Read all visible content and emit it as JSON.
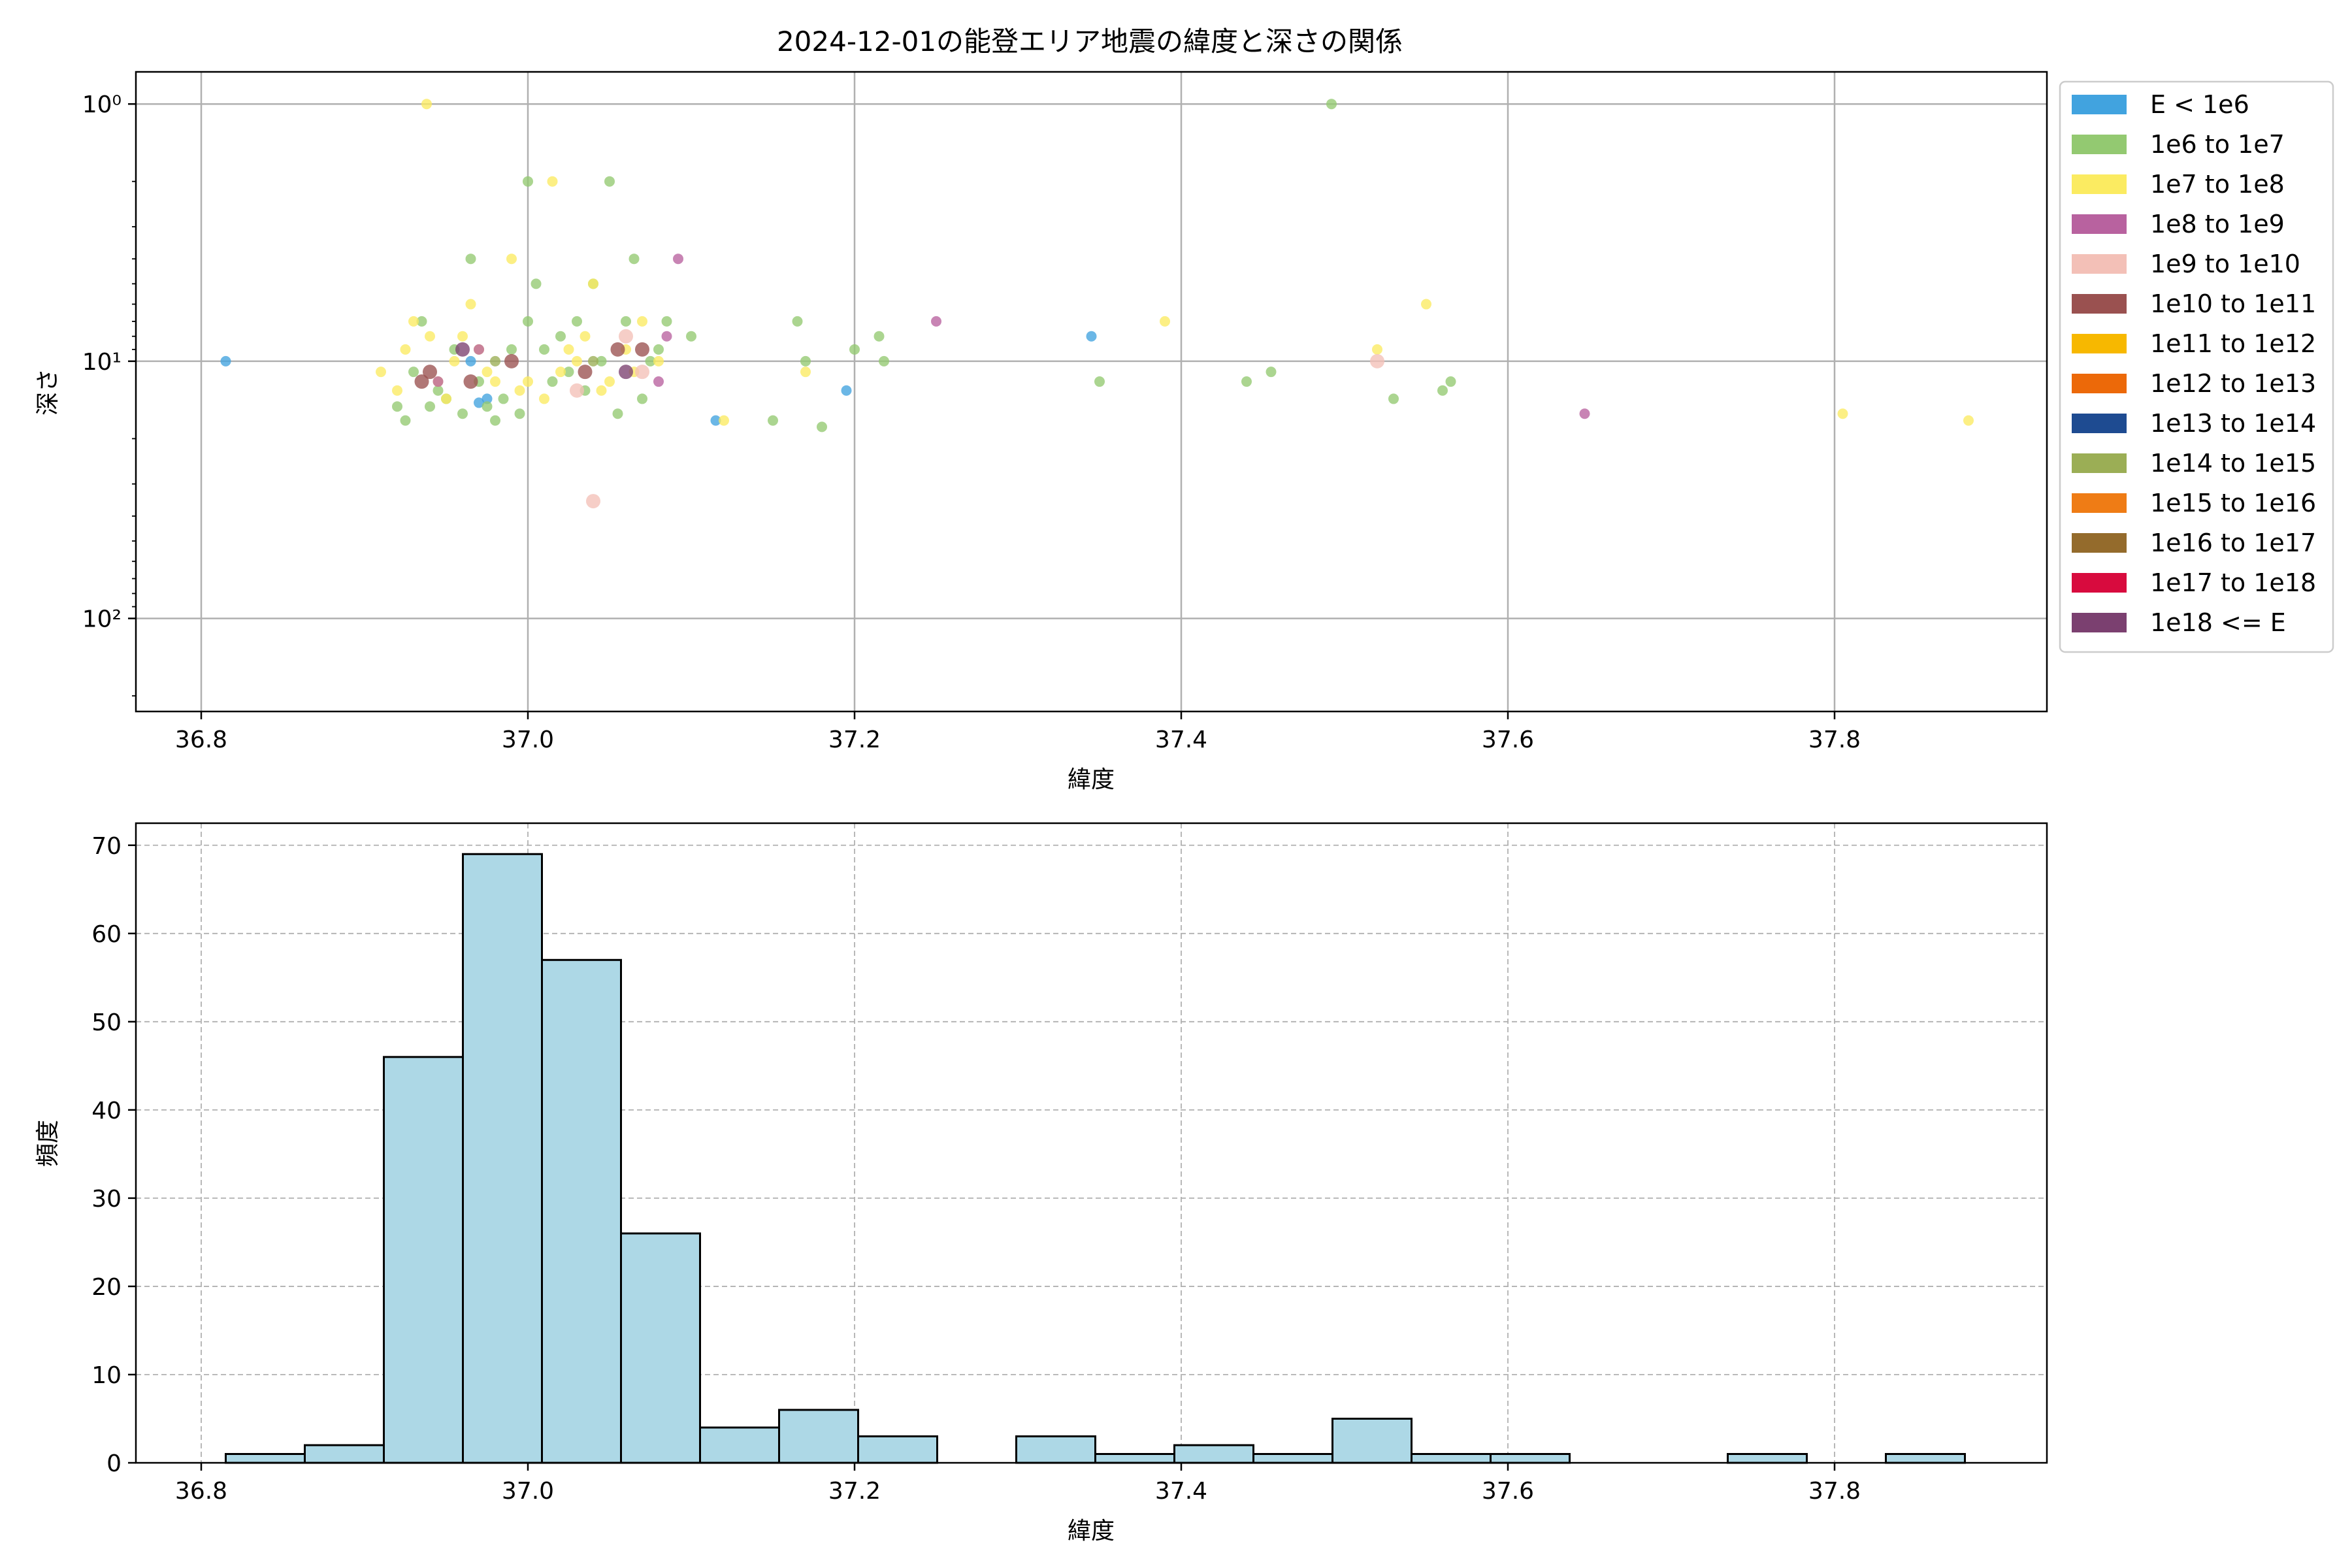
{
  "title": "2024-12-01の能登エリア地震の緯度と深さの関係",
  "legend": [
    {
      "label": "E < 1e6",
      "color": "#41a3df"
    },
    {
      "label": "1e6 to 1e7",
      "color": "#93c971"
    },
    {
      "label": "1e7 to 1e8",
      "color": "#fbeb61"
    },
    {
      "label": "1e8 to 1e9",
      "color": "#b8629f"
    },
    {
      "label": "1e9 to 1e10",
      "color": "#f3c0b7"
    },
    {
      "label": "1e10 to 1e11",
      "color": "#9a5150"
    },
    {
      "label": "1e11 to 1e12",
      "color": "#f7b800"
    },
    {
      "label": "1e12 to 1e13",
      "color": "#ec6909"
    },
    {
      "label": "1e13 to 1e14",
      "color": "#1e4b91"
    },
    {
      "label": "1e14 to 1e15",
      "color": "#9bae55"
    },
    {
      "label": "1e15 to 1e16",
      "color": "#ef7c15"
    },
    {
      "label": "1e16 to 1e17",
      "color": "#946b2c"
    },
    {
      "label": "1e17 to 1e18",
      "color": "#d80b3e"
    },
    {
      "label": "1e18 <= E",
      "color": "#7b4070"
    }
  ],
  "chart_data": [
    {
      "type": "scatter",
      "xlabel": "緯度",
      "ylabel": "深さ",
      "xlim": [
        36.76,
        37.93
      ],
      "ylim": [
        0.75,
        230
      ],
      "y_scale": "log",
      "y_inverted": true,
      "x_ticks": [
        "36.8",
        "37.0",
        "37.2",
        "37.4",
        "37.6",
        "37.8"
      ],
      "y_ticks": [
        {
          "value": 1,
          "label": "10⁰"
        },
        {
          "value": 10,
          "label": "10¹"
        },
        {
          "value": 100,
          "label": "10²"
        }
      ],
      "grid": true,
      "legend_position": "outside right",
      "series": [
        {
          "name": "E < 1e6",
          "points": [
            [
              36.815,
              10
            ],
            [
              36.97,
              14.5
            ],
            [
              36.975,
              14
            ],
            [
              37.115,
              17
            ],
            [
              37.195,
              13
            ],
            [
              37.345,
              8
            ],
            [
              36.965,
              10
            ]
          ]
        },
        {
          "name": "1e6 to 1e7",
          "points": [
            [
              36.92,
              15
            ],
            [
              36.925,
              17
            ],
            [
              36.93,
              11
            ],
            [
              36.935,
              7
            ],
            [
              36.94,
              15
            ],
            [
              36.945,
              13
            ],
            [
              36.95,
              14
            ],
            [
              36.955,
              9
            ],
            [
              36.96,
              16
            ],
            [
              36.965,
              4
            ],
            [
              36.97,
              12
            ],
            [
              36.975,
              15
            ],
            [
              36.98,
              17
            ],
            [
              36.985,
              14
            ],
            [
              36.99,
              9
            ],
            [
              36.995,
              16
            ],
            [
              37.0,
              2
            ],
            [
              37.005,
              5
            ],
            [
              37.0,
              7
            ],
            [
              37.01,
              9
            ],
            [
              37.015,
              12
            ],
            [
              37.02,
              8
            ],
            [
              37.025,
              11
            ],
            [
              37.03,
              7
            ],
            [
              37.035,
              13
            ],
            [
              37.04,
              5
            ],
            [
              37.045,
              10
            ],
            [
              37.05,
              2
            ],
            [
              37.055,
              16
            ],
            [
              37.06,
              7
            ],
            [
              37.065,
              4
            ],
            [
              37.07,
              14
            ],
            [
              37.075,
              10
            ],
            [
              37.08,
              9
            ],
            [
              37.085,
              7
            ],
            [
              37.1,
              8
            ],
            [
              37.15,
              17
            ],
            [
              37.165,
              7
            ],
            [
              37.17,
              10
            ],
            [
              37.18,
              18
            ],
            [
              37.2,
              9
            ],
            [
              37.215,
              8
            ],
            [
              37.218,
              10
            ],
            [
              37.35,
              12
            ],
            [
              37.44,
              12
            ],
            [
              37.455,
              11
            ],
            [
              37.492,
              1
            ],
            [
              37.53,
              14
            ],
            [
              37.56,
              13
            ],
            [
              37.565,
              12
            ]
          ]
        },
        {
          "name": "1e7 to 1e8",
          "points": [
            [
              36.91,
              11
            ],
            [
              36.92,
              13
            ],
            [
              36.925,
              9
            ],
            [
              36.93,
              7
            ],
            [
              36.938,
              1
            ],
            [
              36.94,
              8
            ],
            [
              36.945,
              12
            ],
            [
              36.95,
              14
            ],
            [
              36.955,
              10
            ],
            [
              36.96,
              8
            ],
            [
              36.965,
              6
            ],
            [
              36.97,
              9
            ],
            [
              36.975,
              11
            ],
            [
              36.98,
              12
            ],
            [
              36.99,
              4
            ],
            [
              36.995,
              13
            ],
            [
              37.0,
              12
            ],
            [
              37.01,
              14
            ],
            [
              37.015,
              2
            ],
            [
              37.02,
              11
            ],
            [
              37.025,
              9
            ],
            [
              37.03,
              10
            ],
            [
              37.035,
              8
            ],
            [
              37.04,
              5
            ],
            [
              37.045,
              13
            ],
            [
              37.05,
              12
            ],
            [
              37.06,
              9
            ],
            [
              37.065,
              11
            ],
            [
              37.07,
              7
            ],
            [
              37.08,
              10
            ],
            [
              37.12,
              17
            ],
            [
              37.17,
              11
            ],
            [
              37.39,
              7
            ],
            [
              37.52,
              9
            ],
            [
              37.55,
              6
            ],
            [
              37.805,
              16
            ],
            [
              37.882,
              17
            ]
          ]
        },
        {
          "name": "1e8 to 1e9",
          "points": [
            [
              36.945,
              12
            ],
            [
              36.97,
              9
            ],
            [
              37.08,
              12
            ],
            [
              37.085,
              8
            ],
            [
              37.092,
              4
            ],
            [
              37.25,
              7
            ],
            [
              37.647,
              16
            ]
          ]
        },
        {
          "name": "1e9 to 1e10",
          "points": [
            [
              37.03,
              13
            ],
            [
              37.04,
              35
            ],
            [
              37.06,
              8
            ],
            [
              37.07,
              11
            ],
            [
              37.52,
              10
            ]
          ]
        },
        {
          "name": "1e10 to 1e11",
          "points": [
            [
              36.935,
              12
            ],
            [
              36.94,
              11
            ],
            [
              36.965,
              12
            ],
            [
              36.99,
              10
            ],
            [
              37.035,
              11
            ],
            [
              37.055,
              9
            ],
            [
              37.07,
              9
            ]
          ]
        },
        {
          "name": "1e14 to 1e15",
          "points": [
            [
              36.98,
              10
            ],
            [
              37.04,
              10
            ]
          ]
        },
        {
          "name": "1e18 <= E",
          "points": [
            [
              36.96,
              9
            ],
            [
              37.06,
              11
            ]
          ]
        }
      ]
    },
    {
      "type": "bar",
      "xlabel": "緯度",
      "ylabel": "頻度",
      "xlim": [
        36.76,
        37.93
      ],
      "ylim": [
        0,
        72.5
      ],
      "x_ticks": [
        "36.8",
        "37.0",
        "37.2",
        "37.4",
        "37.6",
        "37.8"
      ],
      "y_ticks": [
        "0",
        "10",
        "20",
        "30",
        "40",
        "50",
        "60",
        "70"
      ],
      "grid": true,
      "bin_start": 36.815,
      "bin_width": 0.0484,
      "values": [
        1,
        2,
        46,
        69,
        57,
        26,
        4,
        6,
        3,
        0,
        3,
        1,
        2,
        1,
        5,
        1,
        1,
        0,
        0,
        1,
        0,
        1
      ]
    }
  ]
}
